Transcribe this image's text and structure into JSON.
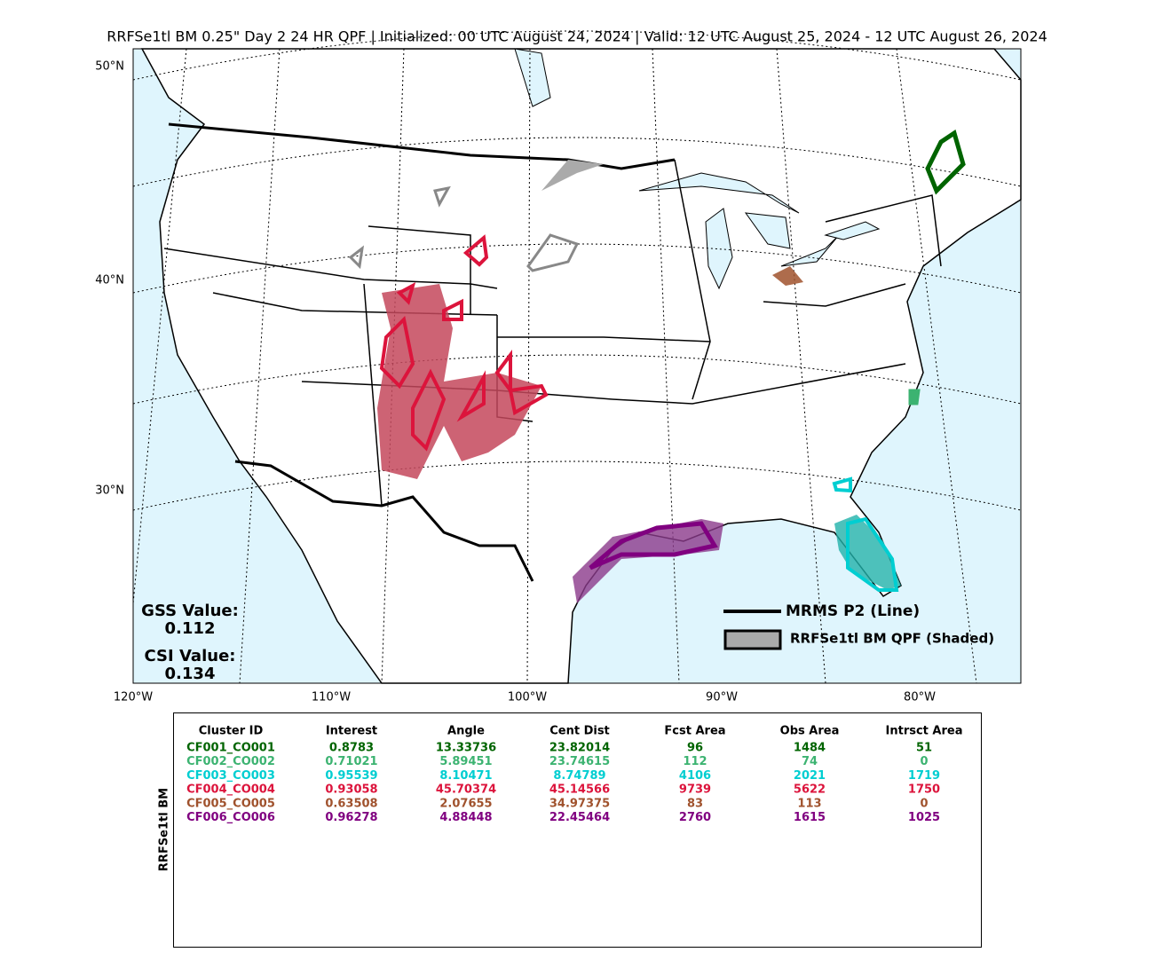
{
  "title": "RRFSe1tl BM 0.25\" Day 2 24 HR QPF | Initialized: 00 UTC August 24, 2024 | Valid: 12 UTC August 25, 2024 - 12 UTC August 26, 2024",
  "map": {
    "lat_labels": [
      "50°N",
      "40°N",
      "30°N"
    ],
    "lon_labels": [
      "120°W",
      "110°W",
      "100°W",
      "90°W",
      "80°W"
    ],
    "legend": [
      "MRMS P2 (Line)",
      "RRFSe1tl BM QPF (Shaded)"
    ],
    "gss_label": "GSS Value:",
    "gss_value": "0.112",
    "csi_label": "CSI Value:",
    "csi_value": "0.134"
  },
  "table": {
    "row_label": "RRFSe1tl BM",
    "headers": [
      "Cluster ID",
      "Interest",
      "Angle",
      "Cent Dist",
      "Fcst Area",
      "Obs Area",
      "Intrsct Area"
    ],
    "rows": [
      {
        "color": "#006400",
        "cells": [
          "CF001_CO001",
          "0.8783",
          "13.33736",
          "23.82014",
          "96",
          "1484",
          "51"
        ]
      },
      {
        "color": "#3cb371",
        "cells": [
          "CF002_CO002",
          "0.71021",
          "5.89451",
          "23.74615",
          "112",
          "74",
          "0"
        ]
      },
      {
        "color": "#00ced1",
        "cells": [
          "CF003_CO003",
          "0.95539",
          "8.10471",
          "8.74789",
          "4106",
          "2021",
          "1719"
        ]
      },
      {
        "color": "#dc143c",
        "cells": [
          "CF004_CO004",
          "0.93058",
          "45.70374",
          "45.14566",
          "9739",
          "5622",
          "1750"
        ]
      },
      {
        "color": "#a0522d",
        "cells": [
          "CF005_CO005",
          "0.63508",
          "2.07655",
          "34.97375",
          "83",
          "113",
          "0"
        ]
      },
      {
        "color": "#800080",
        "cells": [
          "CF006_CO006",
          "0.96278",
          "4.88448",
          "22.45464",
          "2760",
          "1615",
          "1025"
        ]
      }
    ]
  }
}
